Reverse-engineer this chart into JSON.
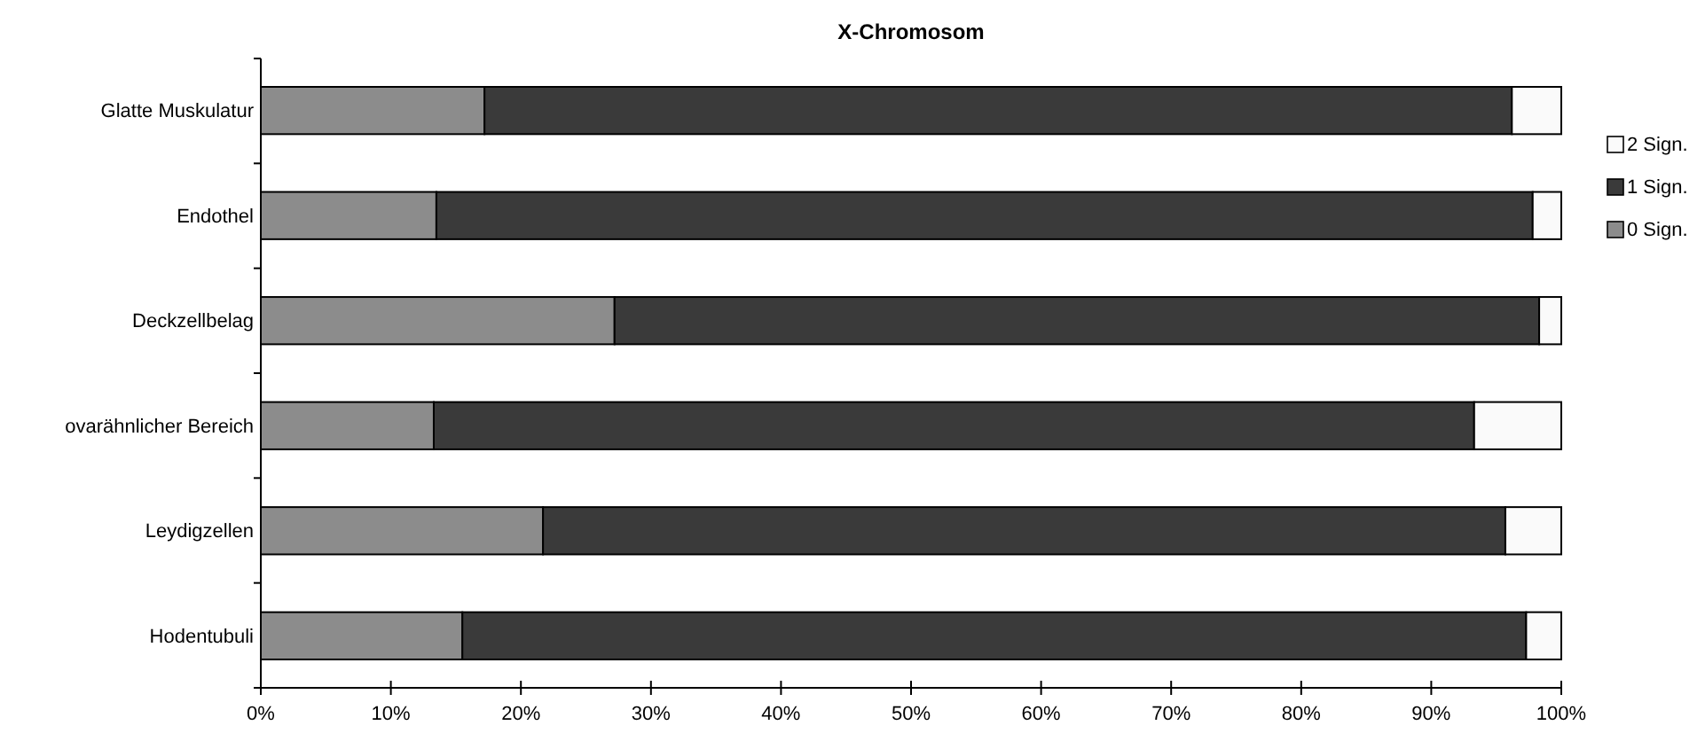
{
  "chart_data": {
    "type": "bar",
    "orientation": "horizontal",
    "stacked": true,
    "title": "X-Chromosom",
    "categories": [
      "Glatte Muskulatur",
      "Endothel",
      "Deckzellbelag",
      "ovarähnlicher Bereich",
      "Leydigzellen",
      "Hodentubuli"
    ],
    "series": [
      {
        "name": "0 Sign.",
        "color": "#8c8c8c",
        "values": [
          17.2,
          13.5,
          27.2,
          13.3,
          21.7,
          15.5
        ]
      },
      {
        "name": "1 Sign.",
        "color": "#3a3a3a",
        "values": [
          79.0,
          84.3,
          71.1,
          80.0,
          74.0,
          81.8
        ]
      },
      {
        "name": "2 Sign.",
        "color": "#fafafa",
        "values": [
          3.8,
          2.2,
          1.7,
          6.7,
          4.3,
          2.7
        ]
      }
    ],
    "xlim": [
      0,
      100
    ],
    "xticks": [
      {
        "value": 0,
        "label": "0%"
      },
      {
        "value": 10,
        "label": "10%"
      },
      {
        "value": 20,
        "label": "20%"
      },
      {
        "value": 30,
        "label": "30%"
      },
      {
        "value": 40,
        "label": "40%"
      },
      {
        "value": 50,
        "label": "50%"
      },
      {
        "value": 60,
        "label": "60%"
      },
      {
        "value": 70,
        "label": "70%"
      },
      {
        "value": 80,
        "label": "80%"
      },
      {
        "value": 90,
        "label": "90%"
      },
      {
        "value": 100,
        "label": "100%"
      }
    ],
    "grid": false,
    "legend": "right"
  }
}
